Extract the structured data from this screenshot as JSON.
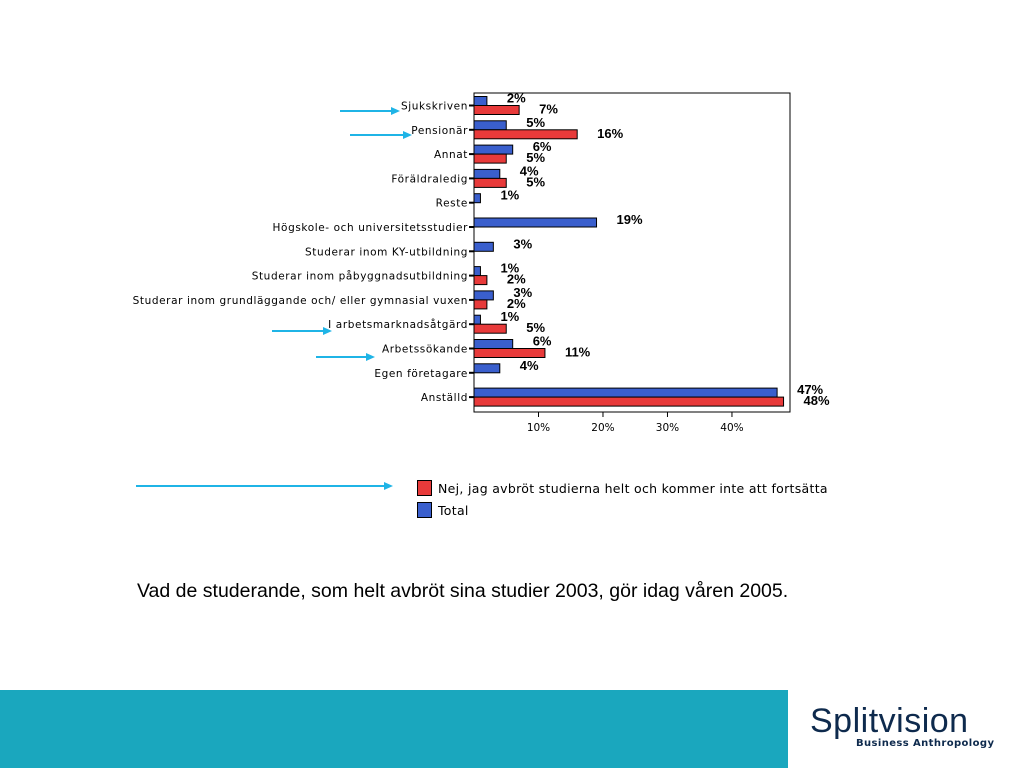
{
  "chart_data": {
    "type": "bar",
    "orientation": "horizontal",
    "categories": [
      "Sjukskriven",
      "Pensionär",
      "Annat",
      "Föräldraledig",
      "Reste",
      "Högskole- och universitetsstudier",
      "Studerar inom KY-utbildning",
      "Studerar inom påbyggnadsutbildning",
      "Studerar inom grundläggande och/ eller gymnasial vuxen",
      "I arbetsmarknadsåtgärd",
      "Arbetssökande",
      "Egen företagare",
      "Anställd"
    ],
    "series": [
      {
        "name": "Total",
        "color": "#3a5fcd",
        "values": [
          2,
          5,
          6,
          4,
          1,
          19,
          3,
          1,
          3,
          1,
          6,
          4,
          47
        ],
        "labels": [
          "2%",
          "5%",
          "6%",
          "4%",
          "1%",
          "19%",
          "3%",
          "1%",
          "3%",
          "1%",
          "6%",
          "4%",
          "47%"
        ]
      },
      {
        "name": "Nej, jag avbröt studierna helt och kommer inte att fortsätta",
        "color": "#e83a3a",
        "values": [
          7,
          16,
          5,
          5,
          null,
          null,
          null,
          2,
          2,
          5,
          11,
          null,
          48
        ],
        "labels": [
          "7%",
          "16%",
          "5%",
          "5%",
          null,
          null,
          null,
          "2%",
          "2%",
          "5%",
          "11%",
          null,
          "48%"
        ]
      }
    ],
    "xticks": [
      "10%",
      "20%",
      "30%",
      "40%"
    ],
    "xtick_values": [
      10,
      20,
      30,
      40
    ],
    "xlim": [
      0,
      49
    ],
    "grid": false,
    "highlighted_categories_with_arrows": [
      "Sjukskriven",
      "Pensionär",
      "I arbetsmarknadsåtgärd",
      "Arbetssökande"
    ]
  },
  "legend": {
    "items": [
      {
        "label": "Nej, jag avbröt studierna helt och kommer inte att fortsätta",
        "color": "#e83a3a"
      },
      {
        "label": "Total",
        "color": "#3a5fcd"
      }
    ]
  },
  "caption": "Vad de studerande, som helt avbröt sina studier 2003, gör idag våren 2005.",
  "footer": {
    "logo_text": "Splitvision",
    "logo_tagline": "Business Anthropology",
    "background_color": "#1aa7be"
  },
  "arrow_color": "#1fb4e6"
}
